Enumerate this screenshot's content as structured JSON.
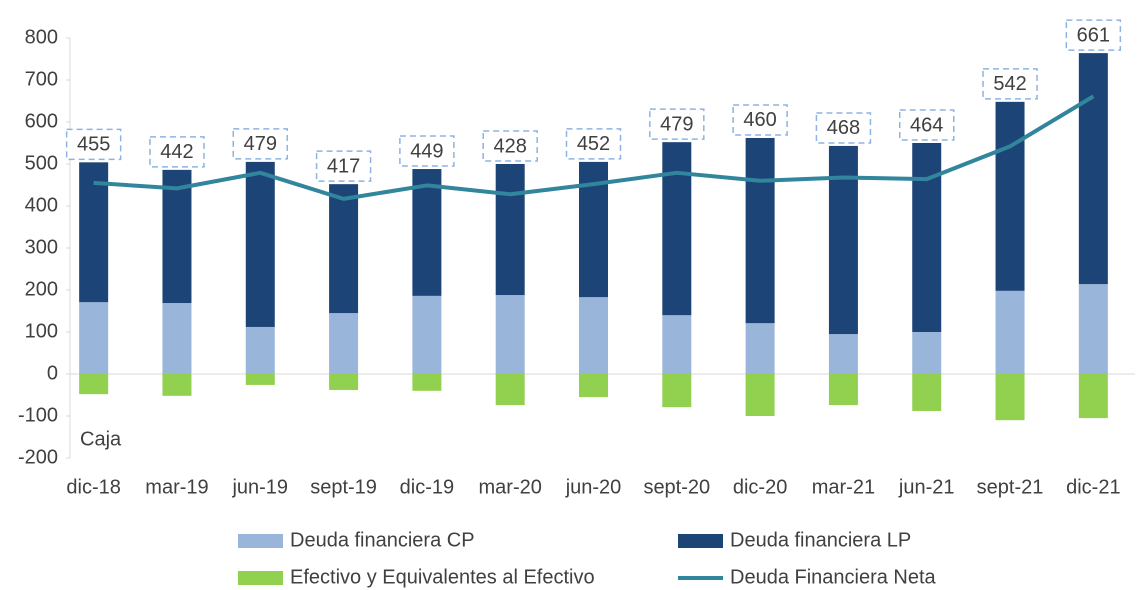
{
  "chart_data": {
    "type": "bar",
    "stacked": true,
    "categories": [
      "dic-18",
      "mar-19",
      "jun-19",
      "sept-19",
      "dic-19",
      "mar-20",
      "jun-20",
      "sept-20",
      "dic-20",
      "mar-21",
      "jun-21",
      "sept-21",
      "dic-21"
    ],
    "series": [
      {
        "name": "Deuda financiera CP",
        "color": "#9ab5da",
        "values": [
          171,
          169,
          112,
          145,
          186,
          188,
          183,
          140,
          121,
          95,
          100,
          198,
          214
        ]
      },
      {
        "name": "Deuda financiera LP",
        "color": "#1d4477",
        "values": [
          333,
          317,
          393,
          307,
          302,
          312,
          322,
          412,
          441,
          448,
          450,
          450,
          550
        ]
      },
      {
        "name": "Efectivo y Equivalentes al Efectivo",
        "color": "#92d050",
        "values": [
          -48,
          -52,
          -26,
          -38,
          -40,
          -74,
          -55,
          -79,
          -100,
          -74,
          -88,
          -110,
          -105
        ]
      },
      {
        "name": "Deuda Financiera Neta",
        "type": "line",
        "color": "#31859c",
        "values": [
          455,
          442,
          479,
          417,
          449,
          428,
          452,
          479,
          460,
          468,
          464,
          542,
          661
        ]
      }
    ],
    "annotations": [
      "Caja"
    ],
    "ylim": [
      -200,
      800
    ],
    "yticks": [
      -200,
      -100,
      0,
      100,
      200,
      300,
      400,
      500,
      600,
      700,
      800
    ],
    "grid": false,
    "legend": "bottom"
  }
}
